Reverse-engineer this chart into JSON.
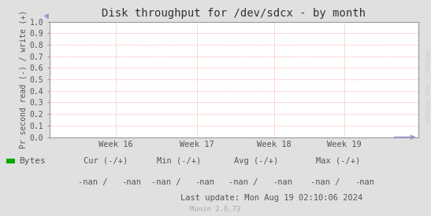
{
  "title": "Disk throughput for /dev/sdcx - by month",
  "ylabel": "Pr second read (-) / write (+)",
  "ylim": [
    0.0,
    1.0
  ],
  "yticks": [
    0.0,
    0.1,
    0.2,
    0.3,
    0.4,
    0.5,
    0.6,
    0.7,
    0.8,
    0.9,
    1.0
  ],
  "xtick_labels": [
    "Week 16",
    "Week 17",
    "Week 18",
    "Week 19"
  ],
  "xtick_positions": [
    0.18,
    0.4,
    0.61,
    0.8
  ],
  "bg_color": "#e0e0e0",
  "plot_bg_color": "#ffffff",
  "grid_color": "#ff9999",
  "axis_color": "#999999",
  "title_color": "#333333",
  "legend_label": "Bytes",
  "legend_color": "#00aa00",
  "watermark": "RRDTOOL / TOBI OETIKER",
  "footer_munin": "Munin 2.0.73",
  "footer_update": "Last update: Mon Aug 19 02:10:06 2024",
  "stats_cur": "Cur (-/+)",
  "stats_min": "Min (-/+)",
  "stats_avg": "Avg (-/+)",
  "stats_max": "Max (-/+)",
  "nan_val1": "-nan /",
  "nan_val2": "-nan",
  "blue_color": "#9999cc",
  "text_color": "#555555"
}
